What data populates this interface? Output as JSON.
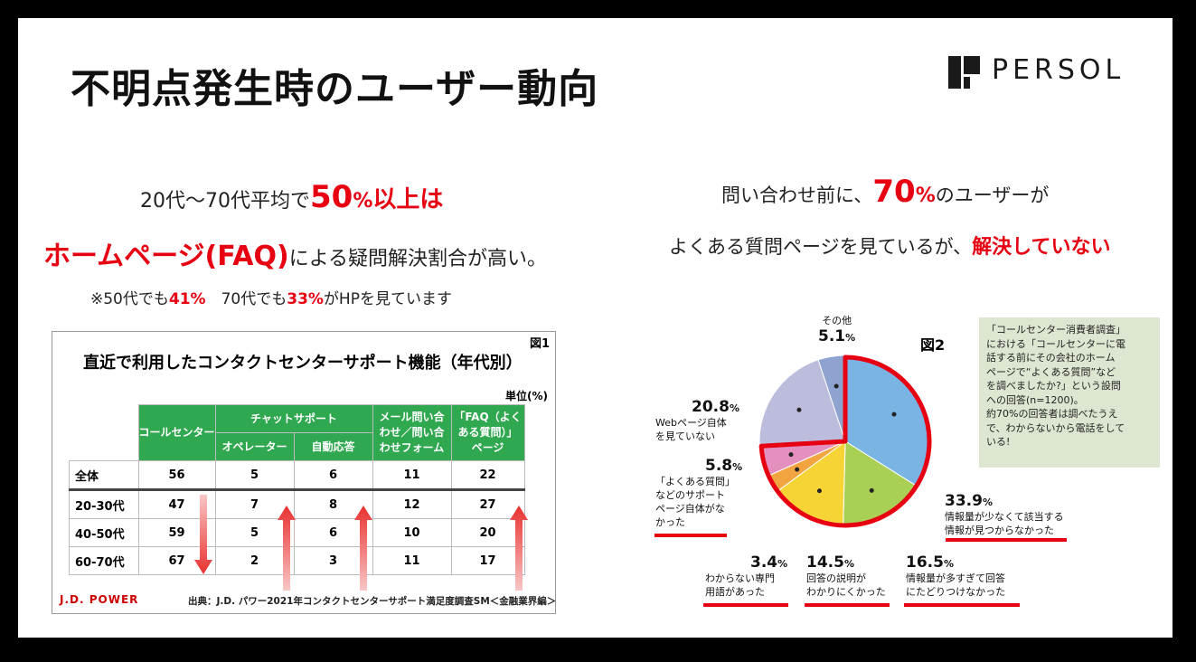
{
  "title": "不明点発生時のユーザー動向",
  "logo": "PERSOL",
  "left": {
    "line1_pre": "20代〜70代平均で",
    "line1_num": "50",
    "line1_pct": "%",
    "line1_post": "以上は",
    "line2_red": "ホームページ(FAQ)",
    "line2_post": "による疑問解決割合が高い。",
    "line3_a": "※50代でも",
    "line3_b": "41%",
    "line3_c": "　70代でも",
    "line3_d": "33%",
    "line3_e": "がHPを見ています"
  },
  "right": {
    "line1_pre": "問い合わせ前に、",
    "line1_num": "70",
    "line1_pct": "%",
    "line1_post": "のユーザーが",
    "line2_pre": "よくある質問ページを見ているが、",
    "line2_red": "解決していない"
  },
  "table_figure": {
    "fig_num": "図1",
    "title": "直近で利用したコンタクトセンターサポート機能（年代別）",
    "unit": "単位(%)",
    "jd": "J.D. POWER",
    "source": "出典：J.D. パワー2021年コンタクトセンターサポート満足度調査SM＜金融業界編＞"
  },
  "chart_data": [
    {
      "type": "table",
      "title": "直近で利用したコンタクトセンターサポート機能（年代別）",
      "unit": "単位(%)",
      "headers": {
        "call": "コールセンター",
        "chat": "チャットサポート",
        "operator": "オペレーター",
        "auto": "自動応答",
        "mail_l1": "メール問い合",
        "mail_l2": "わせ／問い合",
        "mail_l3": "わせフォーム",
        "faq_l1": "「FAQ（よく",
        "faq_l2": "ある質問）」",
        "faq_l3": "ページ"
      },
      "rows": [
        {
          "label": "全体",
          "values": [
            "56",
            "5",
            "6",
            "11",
            "22"
          ]
        },
        {
          "label": "20-30代",
          "values": [
            "47",
            "7",
            "8",
            "12",
            "27"
          ]
        },
        {
          "label": "40-50代",
          "values": [
            "59",
            "5",
            "6",
            "10",
            "20"
          ]
        },
        {
          "label": "60-70代",
          "values": [
            "67",
            "2",
            "3",
            "11",
            "17"
          ]
        }
      ]
    },
    {
      "type": "pie",
      "fig_label": "図2",
      "slices": [
        {
          "value": 33.9,
          "value_label": "33.9",
          "label": "情報量が少なくて該当する情報が見つからなかった",
          "color": "#7ab4e4"
        },
        {
          "value": 16.5,
          "value_label": "16.5",
          "label": "情報量が多すぎて回答にたどりつけなかった",
          "color": "#a9cf54"
        },
        {
          "value": 14.5,
          "value_label": "14.5",
          "label": "回答の説明がわかりにくかった",
          "color": "#f7d435"
        },
        {
          "value": 3.4,
          "value_label": "3.4",
          "label": "わからない専門用語があった",
          "color": "#f2a440"
        },
        {
          "value": 5.8,
          "value_label": "5.8",
          "label": "「よくある質問」などのサポートページ自体がなかった",
          "color": "#e490bf"
        },
        {
          "value": 20.8,
          "value_label": "20.8",
          "label": "Webページ自体を見ていない",
          "color": "#bcbcdc"
        },
        {
          "value": 5.1,
          "value_label": "5.1",
          "label": "その他",
          "color": "#8fa3d0"
        }
      ],
      "percent_sign": "%"
    }
  ],
  "pie_labels": {
    "s339_d1": "情報量が少なくて該当する",
    "s339_d2": "情報が見つからなかった",
    "s165_d1": "情報量が多すぎて回答",
    "s165_d2": "にたどりつけなかった",
    "s145_d1": "回答の説明が",
    "s145_d2": "わかりにくかった",
    "s34_d1": "わからない専門",
    "s34_d2": "用語があった",
    "s58_d1": "「よくある質問」",
    "s58_d2": "などのサポート",
    "s58_d3": "ページ自体がな",
    "s58_d4": "かった",
    "s208_d1": "Webページ自体",
    "s208_d2": "を見ていない",
    "s51_d1": "その他"
  },
  "note": {
    "l1": "「コールセンター消費者調査」",
    "l2": "における「コールセンターに電",
    "l3": "話する前にその会社のホーム",
    "l4": "ページで“よくある質問”など",
    "l5": "を調べましたか?」という設問",
    "l6": "への回答(n=1200)。",
    "l7": "約70%の回答者は調べたうえ",
    "l8": "で、わからないから電話をして",
    "l9": "いる!"
  }
}
